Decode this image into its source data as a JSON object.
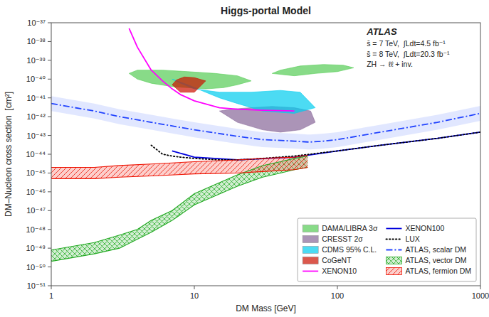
{
  "chart_data": {
    "type": "line",
    "title": "Higgs-portal Model",
    "x_label": "DM Mass [GeV]",
    "y_label": "DM–Nucleon cross section  [cm²]",
    "log": true,
    "grid": false,
    "legend": "lower right",
    "xlim": [
      1,
      1000
    ],
    "ylim": [
      1e-51,
      1e-37
    ],
    "xticks": [
      1,
      10,
      100,
      1000
    ],
    "yticks": [
      {
        "value": 1e-51,
        "label": "10⁻⁵¹"
      },
      {
        "value": 1e-50,
        "label": "10⁻⁵⁰"
      },
      {
        "value": 1e-49,
        "label": "10⁻⁴⁹"
      },
      {
        "value": 1e-48,
        "label": "10⁻⁴⁸"
      },
      {
        "value": 1e-47,
        "label": "10⁻⁴⁷"
      },
      {
        "value": 1e-46,
        "label": "10⁻⁴⁶"
      },
      {
        "value": 1e-45,
        "label": "10⁻⁴⁵"
      },
      {
        "value": 1e-44,
        "label": "10⁻⁴⁴"
      },
      {
        "value": 1e-43,
        "label": "10⁻⁴³"
      },
      {
        "value": 1e-42,
        "label": "10⁻⁴²"
      },
      {
        "value": 1e-41,
        "label": "10⁻⁴¹"
      },
      {
        "value": 1e-40,
        "label": "10⁻⁴⁰"
      },
      {
        "value": 1e-39,
        "label": "10⁻³⁹"
      },
      {
        "value": 1e-38,
        "label": "10⁻³⁸"
      },
      {
        "value": 1e-37,
        "label": "10⁻³⁷"
      }
    ],
    "annotations": [
      "ATLAS",
      "s̄ = 7 TeV,  ∫Ldt=4.5 fb⁻¹",
      "s̄ = 8 TeV,  ∫Ldt=20.3 fb⁻¹",
      "ZH → ℓℓ + inv."
    ],
    "series": [
      {
        "name": "DAMA/LIBRA 3σ",
        "type": "area",
        "color": "#55cc55",
        "x": [
          3.5,
          4,
          5,
          7,
          9,
          12,
          16,
          20,
          25,
          20,
          14,
          9,
          6,
          4,
          3.5,
          null,
          35,
          50,
          70,
          100,
          130,
          110,
          80,
          55,
          40,
          35
        ],
        "values": [
          2e-40,
          1e-40,
          6e-41,
          4e-41,
          3.5e-41,
          3e-41,
          3.5e-41,
          5e-41,
          8e-41,
          1.5e-40,
          2e-40,
          2.5e-40,
          3e-40,
          3e-40,
          2e-40,
          null,
          2e-40,
          1.5e-40,
          2e-40,
          2.5e-40,
          4e-40,
          5.5e-40,
          6e-40,
          5e-40,
          3e-40,
          2e-40
        ]
      },
      {
        "name": "CRESST 2σ",
        "type": "area",
        "color": "#886699",
        "x": [
          15,
          20,
          30,
          40,
          55,
          70,
          65,
          50,
          35,
          25,
          18,
          15
        ],
        "values": [
          2e-42,
          5e-43,
          2e-43,
          1.5e-43,
          2e-43,
          5e-43,
          2e-42,
          3e-42,
          3.5e-42,
          3e-42,
          2.5e-42,
          2e-42
        ]
      },
      {
        "name": "CDMS 95% C.L.",
        "type": "area",
        "color": "#00ccee",
        "x": [
          7,
          9,
          12,
          15,
          20,
          30,
          50,
          70,
          55,
          40,
          25,
          15,
          10,
          8,
          7
        ],
        "values": [
          1e-40,
          5e-41,
          2e-41,
          1e-41,
          5e-42,
          2e-42,
          1.5e-42,
          3e-42,
          2e-41,
          2.5e-41,
          2e-41,
          2e-41,
          3e-41,
          6e-41,
          1e-40
        ]
      },
      {
        "name": "CoGeNT",
        "type": "area",
        "color": "#cc1100",
        "x": [
          7,
          8,
          10,
          12,
          10,
          8.5,
          7.5,
          7
        ],
        "values": [
          5e-41,
          2e-41,
          2e-41,
          8e-41,
          1.2e-40,
          1.3e-40,
          9e-41,
          5e-41
        ]
      },
      {
        "name": "XENON10",
        "type": "line",
        "color": "#ff00ff",
        "line_style": "solid",
        "x": [
          3.5,
          4,
          5,
          6,
          7,
          8,
          10,
          15,
          20,
          30,
          50
        ],
        "values": [
          5e-38,
          5e-39,
          3e-40,
          8e-41,
          3e-41,
          1.5e-41,
          7e-42,
          3e-42,
          2.5e-42,
          2.2e-42,
          2e-42
        ]
      },
      {
        "name": "XENON100",
        "type": "line",
        "color": "#0000dd",
        "line_style": "solid",
        "x": [
          7,
          10,
          20,
          50,
          100,
          200,
          500,
          1000
        ],
        "values": [
          1.5e-44,
          7e-45,
          5e-45,
          7e-45,
          1.5e-44,
          3e-44,
          7e-44,
          1.5e-43
        ]
      },
      {
        "name": "LUX",
        "type": "line",
        "color": "#000000",
        "line_style": "dotted",
        "x": [
          5,
          6,
          7,
          8,
          10,
          15,
          20,
          30,
          50,
          100,
          200,
          500,
          1000
        ],
        "values": [
          3e-44,
          1e-44,
          8e-45,
          7e-45,
          6e-45,
          5e-45,
          5e-45,
          6e-45,
          8e-45,
          1.5e-44,
          3e-44,
          7e-44,
          1.5e-43
        ]
      },
      {
        "type": "band",
        "color": "#aabbff",
        "x": [
          1,
          2,
          3,
          5,
          10,
          20,
          30,
          50,
          62,
          65,
          80,
          100,
          200,
          500,
          1000
        ],
        "low": [
          2e-42,
          8e-43,
          4e-43,
          2e-43,
          8e-44,
          3.6e-44,
          2.4e-44,
          2e-44,
          1.8e-44,
          1.8e-44,
          2e-44,
          2.4e-44,
          6e-44,
          2e-43,
          6e-43
        ],
        "high": [
          1.25e-41,
          5e-42,
          2.5e-42,
          1.25e-42,
          5e-43,
          2.25e-43,
          1.5e-43,
          1.25e-43,
          1.125e-43,
          1.125e-43,
          1.25e-43,
          1.5e-43,
          3.75e-43,
          1.25e-42,
          3.75e-42
        ]
      },
      {
        "name": "ATLAS, scalar DM",
        "type": "line",
        "color": "#2244ff",
        "line_style": "dashdot",
        "x": [
          1,
          2,
          3,
          5,
          10,
          20,
          30,
          50,
          62,
          65,
          80,
          100,
          200,
          500,
          1000
        ],
        "values": [
          5e-42,
          2e-42,
          1e-42,
          5e-43,
          2e-43,
          9e-44,
          6e-44,
          5e-44,
          4.5e-44,
          4.5e-44,
          5e-44,
          6e-44,
          1.5e-43,
          5e-43,
          1.5e-42
        ]
      },
      {
        "name": "ATLAS, vector DM",
        "type": "band",
        "color": "#22aa22",
        "line_style": "crosshatch",
        "x": [
          1,
          2,
          3,
          4,
          5,
          7,
          10,
          20,
          30,
          40,
          50,
          62
        ],
        "low": [
          2e-50,
          5e-50,
          1e-49,
          3e-49,
          7e-49,
          3e-48,
          2e-47,
          2e-46,
          6e-46,
          1e-45,
          1.5e-45,
          2e-45
        ],
        "high": [
          8e-50,
          2e-49,
          5e-49,
          1e-48,
          3e-48,
          1e-47,
          8e-47,
          8e-46,
          2.5e-45,
          4e-45,
          6e-45,
          8e-45
        ]
      },
      {
        "name": "ATLAS, fermion DM",
        "type": "band",
        "color": "#ee1100",
        "line_style": "diagonal",
        "x": [
          1,
          2,
          3,
          5,
          10,
          20,
          30,
          50,
          62
        ],
        "low": [
          5e-46,
          5e-46,
          6e-46,
          7e-46,
          9e-46,
          1e-45,
          1.2e-45,
          1.5e-45,
          2e-45
        ],
        "high": [
          2e-45,
          2e-45,
          2.5e-45,
          3e-45,
          4e-45,
          5e-45,
          6e-45,
          7e-45,
          9e-45
        ]
      }
    ]
  }
}
